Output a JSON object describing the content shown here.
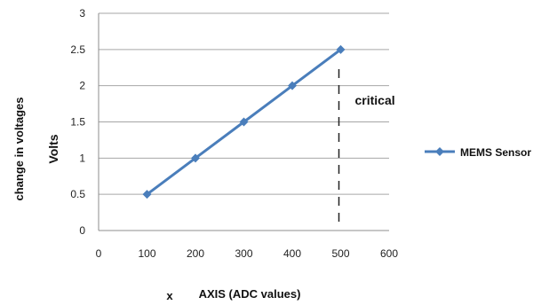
{
  "chart_data": {
    "type": "line",
    "title": "",
    "xlabel_prefix": "x",
    "xlabel": "AXIS (ADC values)",
    "ylabel_outer": "change in voltages",
    "ylabel_inner": "Volts",
    "xlim": [
      0,
      600
    ],
    "ylim": [
      0,
      3
    ],
    "xticks": [
      "0",
      "100",
      "200",
      "300",
      "400",
      "500",
      "600"
    ],
    "yticks": [
      "0",
      "0.5",
      "1",
      "1.5",
      "2",
      "2.5",
      "3"
    ],
    "grid": "horizontal",
    "legend_position": "right",
    "series": [
      {
        "name": "MEMS Sensor",
        "color": "#4a7ebb",
        "marker": "diamond",
        "x": [
          100,
          200,
          300,
          400,
          500
        ],
        "y": [
          0.5,
          1.0,
          1.5,
          2.0,
          2.5
        ]
      }
    ],
    "annotations": [
      {
        "text": "critical",
        "x": 500,
        "style": "dashed-vertical-line"
      }
    ]
  }
}
